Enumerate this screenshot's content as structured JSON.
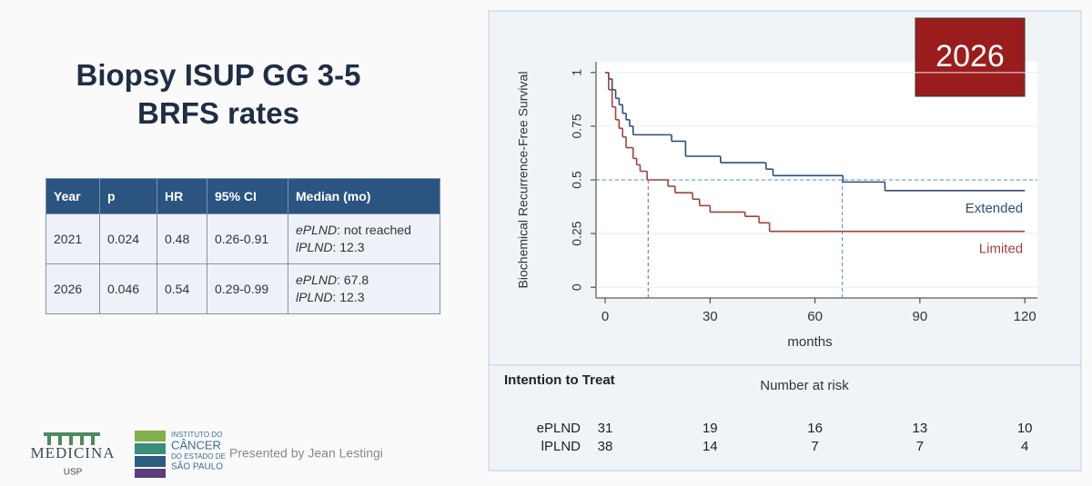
{
  "slide": {
    "title_lines": [
      "Biopsy ISUP GG 3-5",
      "BRFS rates"
    ],
    "presenter": "Presented by Jean Lestingi",
    "logo_left": [
      "MEDICINA",
      "USP"
    ],
    "logo_right": [
      "INSTITUTO DO",
      "CÂNCER",
      "DO ESTADO DE",
      "SÃO PAULO"
    ]
  },
  "table": {
    "header": [
      "Year",
      "p",
      "HR",
      "95% CI",
      "Median (mo)"
    ],
    "rows": [
      {
        "cells": [
          "2021",
          "0.024",
          "0.48",
          "0.26-0.91"
        ],
        "median": [
          {
            "arm": "ePLND",
            "text": ": not reached"
          },
          {
            "arm": "lPLND",
            "text": ": 12.3"
          }
        ]
      },
      {
        "cells": [
          "2026",
          "0.046",
          "0.54",
          "0.29-0.99"
        ],
        "median": [
          {
            "arm": "ePLND",
            "text": ": 67.8"
          },
          {
            "arm": "lPLND",
            "text": ": 12.3"
          }
        ]
      }
    ]
  },
  "chart_data": {
    "type": "step",
    "badge": "2026",
    "ylabel": "Biochemical Recurrence-Free Survival",
    "xlabel": "months",
    "xlim": [
      -2.6,
      123.6
    ],
    "ylim": [
      -0.05,
      1.05
    ],
    "xticks": [
      0,
      30,
      60,
      90,
      120
    ],
    "yticks": [
      0,
      0.25,
      0.5,
      0.75,
      1
    ],
    "reference_y": 0.5,
    "median_lines": [
      {
        "x": 12.3,
        "color": "#b5514f"
      },
      {
        "x": 67.8,
        "color": "#4a90d9"
      }
    ],
    "series": [
      {
        "name": "Extended",
        "color": "#2f4d73",
        "x": [
          0,
          1,
          2,
          3,
          4,
          5,
          6,
          7,
          8,
          19,
          23,
          33,
          46,
          48,
          68,
          80,
          120
        ],
        "values": [
          1,
          0.97,
          0.92,
          0.88,
          0.85,
          0.81,
          0.78,
          0.75,
          0.71,
          0.68,
          0.61,
          0.58,
          0.55,
          0.52,
          0.49,
          0.45,
          0.45
        ]
      },
      {
        "name": "Limited",
        "color": "#a0403f",
        "x": [
          0,
          1,
          2,
          3,
          4,
          5,
          6,
          8,
          9,
          10,
          12,
          18,
          20,
          25,
          27,
          30,
          40,
          44,
          47,
          120
        ],
        "values": [
          1,
          0.92,
          0.84,
          0.78,
          0.74,
          0.7,
          0.65,
          0.6,
          0.57,
          0.54,
          0.5,
          0.47,
          0.44,
          0.41,
          0.38,
          0.35,
          0.33,
          0.3,
          0.26,
          0.26
        ]
      }
    ],
    "risk_table": {
      "title": "Intention to Treat",
      "label": "Number at risk",
      "rows": [
        {
          "name": "ePLND",
          "counts": [
            31,
            19,
            16,
            13,
            10
          ]
        },
        {
          "name": "lPLND",
          "counts": [
            38,
            14,
            7,
            7,
            4
          ]
        }
      ]
    }
  }
}
